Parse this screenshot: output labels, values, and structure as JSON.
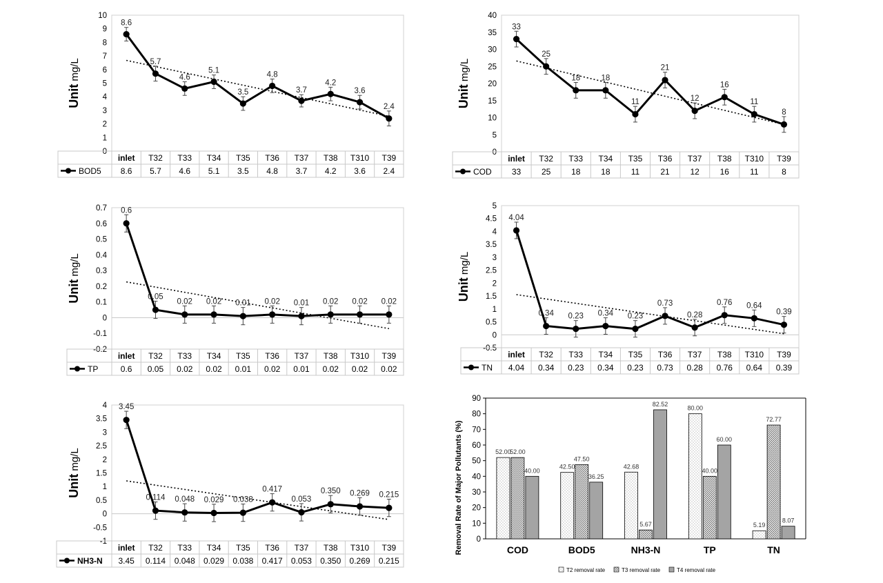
{
  "chart_data": [
    {
      "type": "line",
      "ylabel": "Unit mg/L",
      "ylim": [
        0,
        10
      ],
      "ytick_step": 1,
      "categories": [
        "inlet",
        "T32",
        "T33",
        "T34",
        "T35",
        "T36",
        "T37",
        "T38",
        "T310",
        "T39"
      ],
      "series": [
        {
          "name": "BOD5",
          "values": [
            8.6,
            5.7,
            4.6,
            5.1,
            3.5,
            4.8,
            3.7,
            4.2,
            3.6,
            2.4
          ],
          "labels": [
            "8.6",
            "5.7",
            "4.6",
            "5.1",
            "3.5",
            "4.8",
            "3.7",
            "4.2",
            "3.6",
            "2.4"
          ],
          "error": [
            0.5,
            0.55,
            0.5,
            0.5,
            0.5,
            0.5,
            0.45,
            0.5,
            0.5,
            0.55
          ]
        }
      ],
      "table": [
        "8.6",
        "5.7",
        "4.6",
        "5.1",
        "3.5",
        "4.8",
        "3.7",
        "4.2",
        "3.6",
        "2.4"
      ],
      "trendline": true
    },
    {
      "type": "line",
      "ylabel": "Unit mg/L",
      "ylim": [
        0,
        40
      ],
      "ytick_step": 5,
      "categories": [
        "inlet",
        "T32",
        "T33",
        "T34",
        "T35",
        "T36",
        "T37",
        "T38",
        "T310",
        "T39"
      ],
      "series": [
        {
          "name": "COD",
          "values": [
            33,
            25,
            18,
            18,
            11,
            21,
            12,
            16,
            11,
            8
          ],
          "labels": [
            "33",
            "25",
            "18",
            "18",
            "11",
            "21",
            "12",
            "16",
            "11",
            "8"
          ],
          "error": [
            2.3,
            2.3,
            2.3,
            2.3,
            2.3,
            2.3,
            2.3,
            2.3,
            2.3,
            2.3
          ]
        }
      ],
      "table": [
        "33",
        "25",
        "18",
        "18",
        "11",
        "21",
        "12",
        "16",
        "11",
        "8"
      ],
      "trendline": true
    },
    {
      "type": "line",
      "ylabel": "Unit mg/L",
      "ylim": [
        -0.2,
        0.7
      ],
      "ytick_step": 0.1,
      "categories": [
        "inlet",
        "T32",
        "T33",
        "T34",
        "T35",
        "T36",
        "T37",
        "T38",
        "T310",
        "T39"
      ],
      "series": [
        {
          "name": "TP",
          "values": [
            0.6,
            0.05,
            0.02,
            0.02,
            0.01,
            0.02,
            0.01,
            0.02,
            0.02,
            0.02
          ],
          "labels": [
            "0.6",
            "0.05",
            "0.02",
            "0.02",
            "0.01",
            "0.02",
            "0.01",
            "0.02",
            "0.02",
            "0.02"
          ],
          "error": [
            0.055,
            0.055,
            0.055,
            0.055,
            0.055,
            0.055,
            0.055,
            0.055,
            0.055,
            0.055
          ]
        }
      ],
      "table": [
        "0.6",
        "0.05",
        "0.02",
        "0.02",
        "0.01",
        "0.02",
        "0.01",
        "0.02",
        "0.02",
        "0.02"
      ],
      "trendline": true
    },
    {
      "type": "line",
      "ylabel": "Unit mg/L",
      "ylim": [
        -0.5,
        5
      ],
      "ytick_step": 0.5,
      "categories": [
        "inlet",
        "T32",
        "T33",
        "T34",
        "T35",
        "T36",
        "T37",
        "T38",
        "T310",
        "T39"
      ],
      "series": [
        {
          "name": "TN",
          "values": [
            4.04,
            0.34,
            0.23,
            0.34,
            0.23,
            0.73,
            0.28,
            0.76,
            0.64,
            0.39
          ],
          "labels": [
            "4.04",
            "0.34",
            "0.23",
            "0.34",
            "0.23",
            "0.73",
            "0.28",
            "0.76",
            "0.64",
            "0.39"
          ],
          "error": [
            0.32,
            0.32,
            0.32,
            0.32,
            0.32,
            0.32,
            0.32,
            0.32,
            0.32,
            0.32
          ]
        }
      ],
      "table": [
        "4.04",
        "0.34",
        "0.23",
        "0.34",
        "0.23",
        "0.73",
        "0.28",
        "0.76",
        "0.64",
        "0.39"
      ],
      "trendline": true
    },
    {
      "type": "line",
      "ylabel": "Unit mg/L",
      "ylim": [
        -1,
        4
      ],
      "ytick_step": 0.5,
      "categories": [
        "inlet",
        "T32",
        "T33",
        "T34",
        "T35",
        "T36",
        "T37",
        "T38",
        "T310",
        "T39"
      ],
      "series": [
        {
          "name": "NH3-N",
          "values": [
            3.45,
            0.114,
            0.048,
            0.029,
            0.038,
            0.417,
            0.053,
            0.35,
            0.269,
            0.215
          ],
          "labels": [
            "3.45",
            "0.114",
            "0.048",
            "0.029",
            "0.038",
            "0.417",
            "0.053",
            "0.350",
            "0.269",
            "0.215"
          ],
          "error": [
            0.32,
            0.32,
            0.32,
            0.32,
            0.32,
            0.32,
            0.32,
            0.32,
            0.32,
            0.32
          ]
        }
      ],
      "table": [
        "3.45",
        "0.114",
        "0.048",
        "0.029",
        "0.038",
        "0.417",
        "0.053",
        "0.350",
        "0.269",
        "0.215"
      ],
      "trendline": true
    },
    {
      "type": "bar",
      "ylabel": "Removal Rate of Major Pollutants (%)",
      "ylim": [
        0,
        90
      ],
      "ytick_step": 10,
      "categories": [
        "COD",
        "BOD5",
        "NH3-N",
        "TP",
        "TN"
      ],
      "series": [
        {
          "name": "T2 removal rate",
          "values": [
            52.0,
            42.5,
            42.68,
            80.0,
            5.19
          ],
          "labels": [
            "52.00",
            "42.50",
            "42.68",
            "80.00",
            "5.19"
          ],
          "fill": "dots-light"
        },
        {
          "name": "T3 removal rate",
          "values": [
            52.0,
            47.5,
            5.67,
            40.0,
            72.77
          ],
          "labels": [
            "52.00",
            "47.50",
            "5.67",
            "40.00",
            "72.77"
          ],
          "fill": "dots-dense"
        },
        {
          "name": "T4 removal rate",
          "values": [
            40.0,
            36.25,
            82.52,
            60.0,
            8.07
          ],
          "labels": [
            "40.00",
            "36.25",
            "82.52",
            "60.00",
            "8.07"
          ],
          "fill": "gray"
        }
      ],
      "legend_position": "bottom"
    }
  ]
}
